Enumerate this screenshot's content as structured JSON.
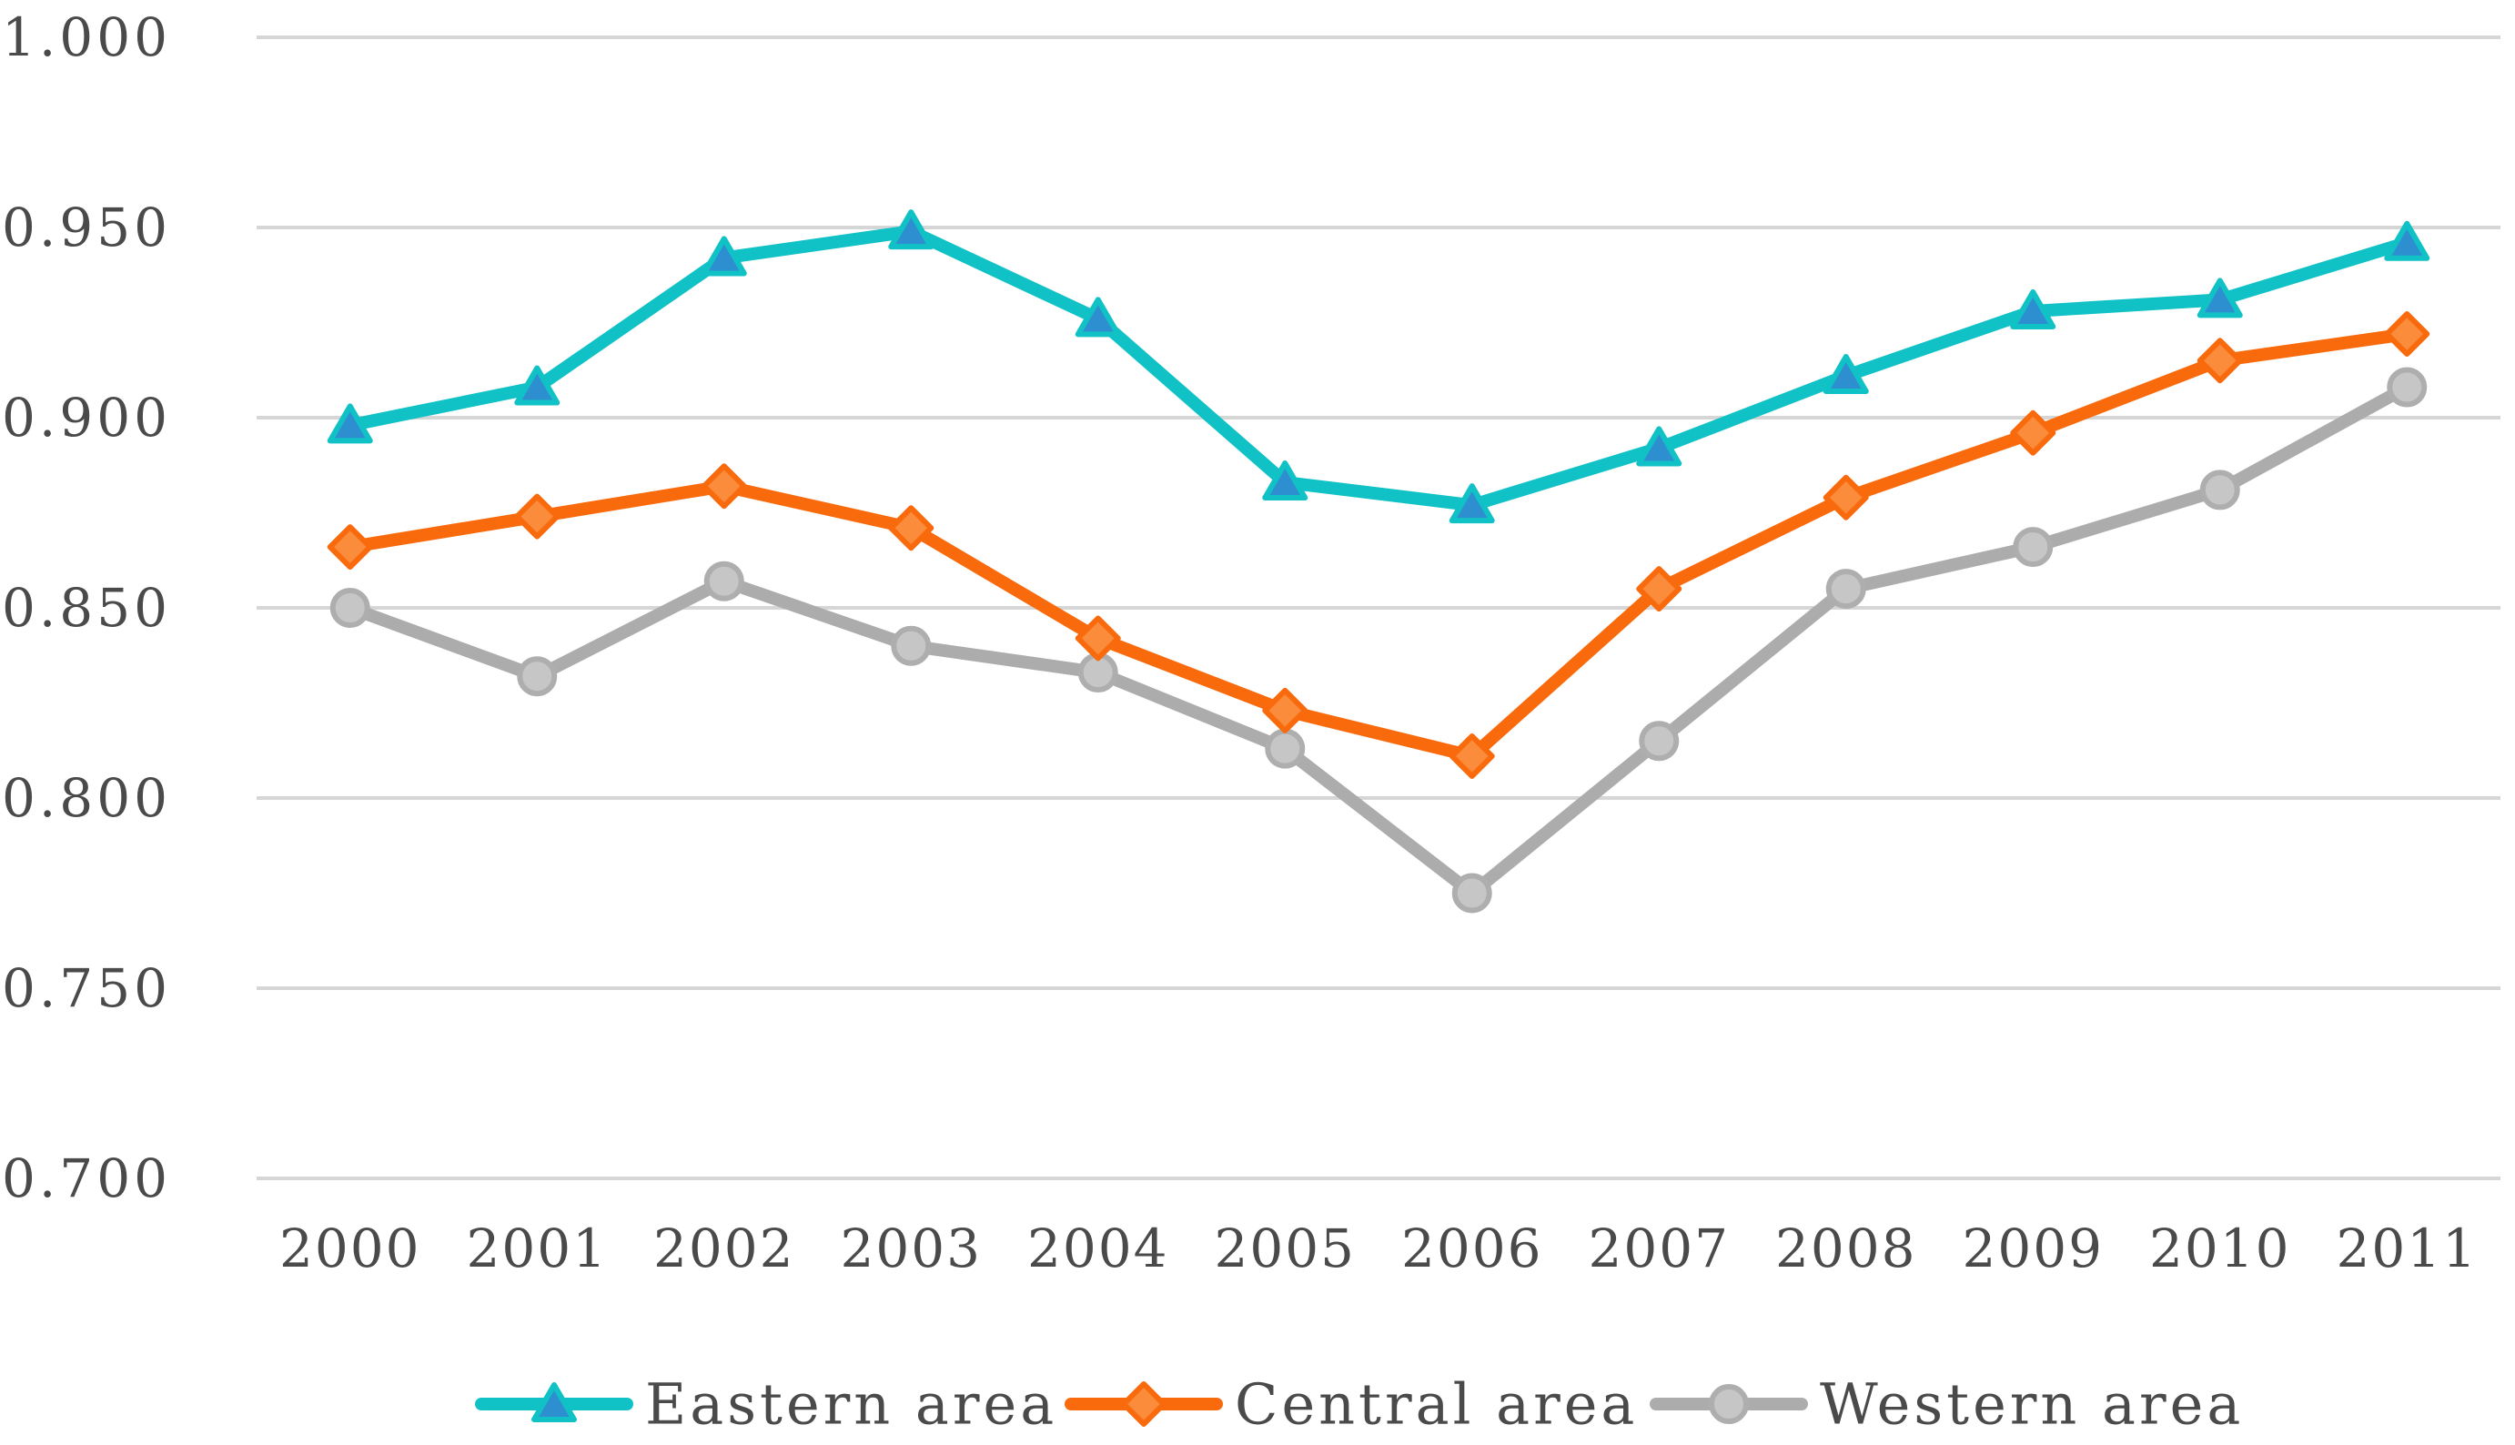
{
  "chart_data": {
    "type": "line",
    "x": [
      "2000",
      "2001",
      "2002",
      "2003",
      "2004",
      "2005",
      "2006",
      "2007",
      "2008",
      "2009",
      "2010",
      "2011"
    ],
    "series": [
      {
        "name": "Eastern area",
        "marker": "triangle",
        "line_color": "#10c2c6",
        "marker_fill": "#2e8fd0",
        "marker_stroke": "#10c2c6",
        "values": [
          0.898,
          0.908,
          0.942,
          0.949,
          0.926,
          0.883,
          0.877,
          0.892,
          0.911,
          0.928,
          0.931,
          0.946
        ]
      },
      {
        "name": "Central area",
        "marker": "diamond",
        "line_color": "#f96a0d",
        "marker_fill": "#fb8c3c",
        "marker_stroke": "#f96a0d",
        "values": [
          0.866,
          0.874,
          0.882,
          0.871,
          0.842,
          0.823,
          0.811,
          0.855,
          0.879,
          0.896,
          0.915,
          0.922
        ]
      },
      {
        "name": "Western area",
        "marker": "circle",
        "line_color": "#acacac",
        "marker_fill": "#c6c6c6",
        "marker_stroke": "#aeaeae",
        "values": [
          0.85,
          0.832,
          0.857,
          0.84,
          0.833,
          0.813,
          0.775,
          0.815,
          0.855,
          0.866,
          0.881,
          0.908
        ]
      }
    ],
    "ylim": [
      0.7,
      1.0
    ],
    "ytick_step": 0.05,
    "ytick_labels": [
      "0.700",
      "0.750",
      "0.800",
      "0.850",
      "0.900",
      "0.950",
      "1.000"
    ],
    "xlabel": "",
    "ylabel": "",
    "title": "",
    "grid": "horizontal",
    "gridline_color": "#d6d6d6",
    "legend_position": "bottom",
    "legend_entries": [
      "Eastern area",
      "Central area",
      "Western area"
    ],
    "text_color": "#4a4a4a",
    "background_color": "#ffffff"
  }
}
